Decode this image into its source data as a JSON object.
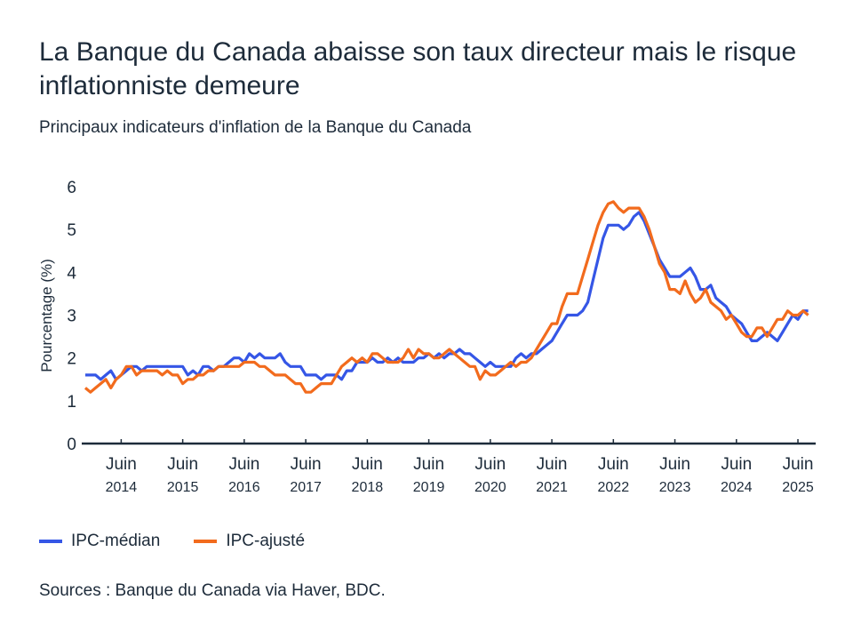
{
  "title": "La Banque du Canada abaisse son taux directeur mais le risque inflationniste demeure",
  "subtitle": "Principaux indicateurs d'inflation de la Banque du Canada",
  "source": "Sources : Banque du Canada via Haver, BDC.",
  "colors": {
    "median": "#3556e6",
    "trim": "#f26b1d",
    "axis": "#1d2b3a"
  },
  "chart_data": {
    "type": "line",
    "title": "Principaux indicateurs d'inflation de la Banque du Canada",
    "xlabel": "",
    "ylabel": "Pourcentage (%)",
    "ylim": [
      0,
      6
    ],
    "yticks": [
      "0",
      "1",
      "2",
      "3",
      "4",
      "5",
      "6"
    ],
    "x_frequency": "monthly",
    "x_start": "2013-11",
    "xticks": [
      {
        "month": "Juin",
        "year": "2014"
      },
      {
        "month": "Juin",
        "year": "2015"
      },
      {
        "month": "Juin",
        "year": "2016"
      },
      {
        "month": "Juin",
        "year": "2017"
      },
      {
        "month": "Juin",
        "year": "2018"
      },
      {
        "month": "Juin",
        "year": "2019"
      },
      {
        "month": "Juin",
        "year": "2020"
      },
      {
        "month": "Juin",
        "year": "2021"
      },
      {
        "month": "Juin",
        "year": "2022"
      },
      {
        "month": "Juin",
        "year": "2023"
      },
      {
        "month": "Juin",
        "year": "2024"
      },
      {
        "month": "Juin",
        "year": "2025"
      }
    ],
    "grid": false,
    "legend_position": "bottom-left",
    "series": [
      {
        "name": "IPC-médian",
        "values": [
          1.6,
          1.6,
          1.6,
          1.5,
          1.6,
          1.7,
          1.5,
          1.6,
          1.7,
          1.8,
          1.8,
          1.7,
          1.8,
          1.8,
          1.8,
          1.8,
          1.8,
          1.8,
          1.8,
          1.8,
          1.6,
          1.7,
          1.6,
          1.8,
          1.8,
          1.7,
          1.8,
          1.8,
          1.9,
          2.0,
          2.0,
          1.9,
          2.1,
          2.0,
          2.1,
          2.0,
          2.0,
          2.0,
          2.1,
          1.9,
          1.8,
          1.8,
          1.8,
          1.6,
          1.6,
          1.6,
          1.5,
          1.6,
          1.6,
          1.6,
          1.5,
          1.7,
          1.7,
          1.9,
          1.9,
          1.9,
          2.0,
          1.9,
          1.9,
          2.0,
          1.9,
          2.0,
          1.9,
          1.9,
          1.9,
          2.0,
          2.0,
          2.1,
          2.0,
          2.1,
          2.0,
          2.1,
          2.1,
          2.2,
          2.1,
          2.1,
          2.0,
          1.9,
          1.8,
          1.9,
          1.8,
          1.8,
          1.8,
          1.8,
          2.0,
          2.1,
          2.0,
          2.1,
          2.1,
          2.2,
          2.3,
          2.4,
          2.6,
          2.8,
          3.0,
          3.0,
          3.0,
          3.1,
          3.3,
          3.8,
          4.3,
          4.8,
          5.1,
          5.1,
          5.1,
          5.0,
          5.1,
          5.3,
          5.4,
          5.2,
          4.9,
          4.6,
          4.3,
          4.1,
          3.9,
          3.9,
          3.9,
          4.0,
          4.1,
          3.9,
          3.6,
          3.6,
          3.7,
          3.4,
          3.3,
          3.2,
          3.0,
          2.9,
          2.8,
          2.6,
          2.4,
          2.4,
          2.5,
          2.6,
          2.5,
          2.4,
          2.6,
          2.8,
          3.0,
          2.9,
          3.1,
          3.1
        ]
      },
      {
        "name": "IPC-ajusté",
        "values": [
          1.3,
          1.2,
          1.3,
          1.4,
          1.5,
          1.3,
          1.5,
          1.6,
          1.8,
          1.8,
          1.6,
          1.7,
          1.7,
          1.7,
          1.7,
          1.6,
          1.7,
          1.6,
          1.6,
          1.4,
          1.5,
          1.5,
          1.6,
          1.6,
          1.7,
          1.7,
          1.8,
          1.8,
          1.8,
          1.8,
          1.8,
          1.9,
          1.9,
          1.9,
          1.8,
          1.8,
          1.7,
          1.6,
          1.6,
          1.6,
          1.5,
          1.4,
          1.4,
          1.2,
          1.2,
          1.3,
          1.4,
          1.4,
          1.4,
          1.6,
          1.8,
          1.9,
          2.0,
          1.9,
          2.0,
          1.9,
          2.1,
          2.1,
          2.0,
          1.9,
          1.9,
          1.9,
          2.0,
          2.2,
          2.0,
          2.2,
          2.1,
          2.1,
          2.0,
          2.0,
          2.1,
          2.2,
          2.1,
          2.0,
          1.9,
          1.8,
          1.8,
          1.5,
          1.7,
          1.6,
          1.6,
          1.7,
          1.8,
          1.9,
          1.8,
          1.9,
          1.9,
          2.0,
          2.2,
          2.4,
          2.6,
          2.8,
          2.8,
          3.2,
          3.5,
          3.5,
          3.5,
          3.9,
          4.3,
          4.7,
          5.1,
          5.4,
          5.6,
          5.65,
          5.5,
          5.4,
          5.5,
          5.5,
          5.5,
          5.3,
          5.0,
          4.6,
          4.2,
          4.0,
          3.6,
          3.6,
          3.5,
          3.8,
          3.5,
          3.3,
          3.4,
          3.6,
          3.3,
          3.2,
          3.1,
          2.9,
          3.0,
          2.8,
          2.6,
          2.5,
          2.5,
          2.7,
          2.7,
          2.5,
          2.7,
          2.9,
          2.9,
          3.1,
          3.0,
          3.0,
          3.1,
          3.0
        ]
      }
    ]
  }
}
